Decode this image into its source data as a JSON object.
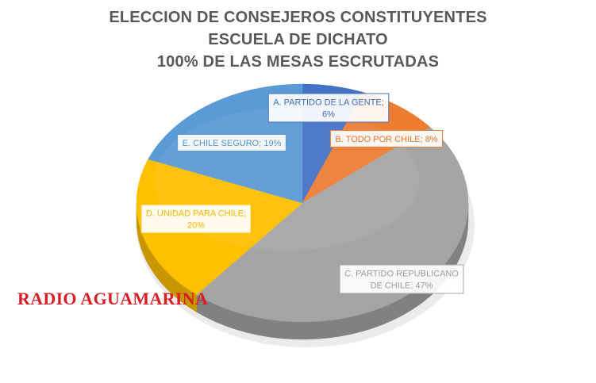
{
  "chart_data": {
    "type": "pie",
    "title_lines": [
      "ELECCION DE CONSEJEROS CONSTITUYENTES",
      "ESCUELA DE DICHATO",
      "100% DE LAS MESAS ESCRUTADAS"
    ],
    "slices": [
      {
        "name": "A. PARTIDO DE LA GENTE",
        "value": 6,
        "label_lines": [
          "A. PARTIDO DE LA GENTE;",
          "6%"
        ],
        "color": "#4472c4",
        "label_color": "#4472c4"
      },
      {
        "name": "B. TODO POR CHILE",
        "value": 8,
        "label_lines": [
          "B. TODO POR CHILE; 8%"
        ],
        "color": "#ed7d31",
        "label_color": "#ed7d31"
      },
      {
        "name": "C. PARTIDO REPUBLICANO DE CHILE",
        "value": 47,
        "label_lines": [
          "C. PARTIDO REPUBLICANO",
          "DE CHILE; 47%"
        ],
        "color": "#a5a5a5",
        "label_color": "#a5a5a5"
      },
      {
        "name": "D. UNIDAD PARA CHILE",
        "value": 20,
        "label_lines": [
          "D. UNIDAD PARA CHILE;",
          "20%"
        ],
        "color": "#ffc000",
        "label_color": "#ffc000"
      },
      {
        "name": "E. CHILE SEGURO",
        "value": 19,
        "label_lines": [
          "E. CHILE SEGURO; 19%"
        ],
        "color": "#5b9bd5",
        "label_color": "#5b9bd5"
      }
    ]
  },
  "watermark": "RADIO AGUAMARINA"
}
